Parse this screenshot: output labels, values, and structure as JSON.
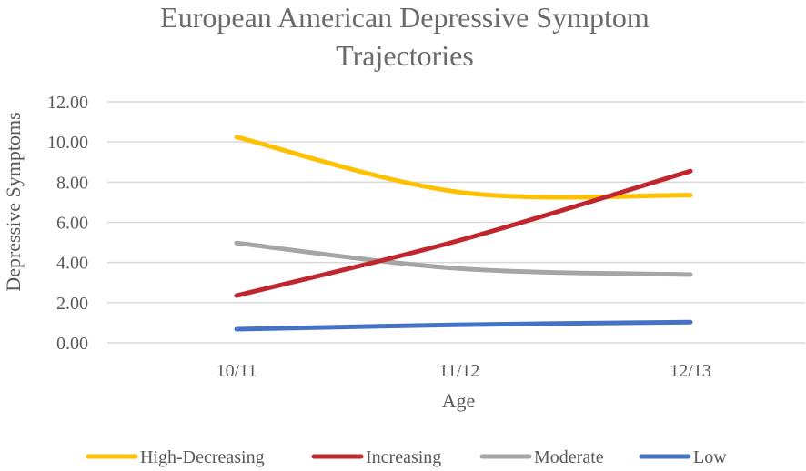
{
  "chart_data": {
    "type": "line",
    "title_lines": [
      "European American Depressive Symptom",
      "Trajectories"
    ],
    "xlabel": "Age",
    "ylabel": "Depressive Symptoms",
    "categories": [
      "10/11",
      "11/12",
      "12/13"
    ],
    "y_ticks": [
      "0.00",
      "2.00",
      "4.00",
      "6.00",
      "8.00",
      "10.00",
      "12.00"
    ],
    "ylim": [
      0,
      12
    ],
    "grid": true,
    "legend_position": "bottom",
    "series": [
      {
        "name": "High-Decreasing",
        "color": "#FFC000",
        "values": [
          10.25,
          7.5,
          7.35
        ]
      },
      {
        "name": "Increasing",
        "color": "#C0262D",
        "values": [
          2.35,
          5.1,
          8.55
        ]
      },
      {
        "name": "Moderate",
        "color": "#A5A5A5",
        "values": [
          4.97,
          3.7,
          3.4
        ]
      },
      {
        "name": "Low",
        "color": "#4472C4",
        "values": [
          0.68,
          0.9,
          1.03
        ]
      }
    ]
  }
}
